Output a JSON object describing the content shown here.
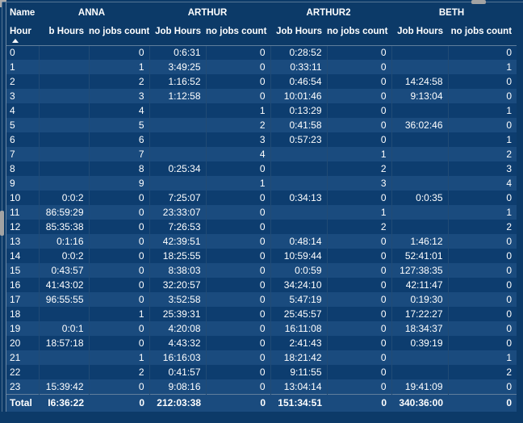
{
  "matrix": {
    "corner_label": "Name",
    "row_header_label": "Hour",
    "sort_direction": "ascending",
    "groups": [
      {
        "name": "ANNA",
        "columns": [
          "b Hours",
          "no jobs count"
        ]
      },
      {
        "name": "ARTHUR",
        "columns": [
          "Job Hours",
          "no jobs count"
        ]
      },
      {
        "name": "ARTHUR2",
        "columns": [
          "Job Hours",
          "no jobs count"
        ]
      },
      {
        "name": "BETH",
        "columns": [
          "Job Hours",
          "no jobs count"
        ]
      }
    ],
    "rows": [
      {
        "hour": "0",
        "values": [
          "",
          "0",
          "0:6:31",
          "0",
          "0:28:52",
          "0",
          "",
          "0"
        ]
      },
      {
        "hour": "1",
        "values": [
          "",
          "1",
          "3:49:25",
          "0",
          "0:33:11",
          "0",
          "",
          "1"
        ]
      },
      {
        "hour": "2",
        "values": [
          "",
          "2",
          "1:16:52",
          "0",
          "0:46:54",
          "0",
          "14:24:58",
          "0"
        ]
      },
      {
        "hour": "3",
        "values": [
          "",
          "3",
          "1:12:58",
          "0",
          "10:01:46",
          "0",
          "9:13:04",
          "0"
        ]
      },
      {
        "hour": "4",
        "values": [
          "",
          "4",
          "",
          "1",
          "0:13:29",
          "0",
          "",
          "1"
        ]
      },
      {
        "hour": "5",
        "values": [
          "",
          "5",
          "",
          "2",
          "0:41:58",
          "0",
          "36:02:46",
          "0"
        ]
      },
      {
        "hour": "6",
        "values": [
          "",
          "6",
          "",
          "3",
          "0:57:23",
          "0",
          "",
          "1"
        ]
      },
      {
        "hour": "7",
        "values": [
          "",
          "7",
          "",
          "4",
          "",
          "1",
          "",
          "2"
        ]
      },
      {
        "hour": "8",
        "values": [
          "",
          "8",
          "0:25:34",
          "0",
          "",
          "2",
          "",
          "3"
        ]
      },
      {
        "hour": "9",
        "values": [
          "",
          "9",
          "",
          "1",
          "",
          "3",
          "",
          "4"
        ]
      },
      {
        "hour": "10",
        "values": [
          "0:0:2",
          "0",
          "7:25:07",
          "0",
          "0:34:13",
          "0",
          "0:0:35",
          "0"
        ]
      },
      {
        "hour": "11",
        "values": [
          "86:59:29",
          "0",
          "23:33:07",
          "0",
          "",
          "1",
          "",
          "1"
        ]
      },
      {
        "hour": "12",
        "values": [
          "85:35:38",
          "0",
          "7:26:53",
          "0",
          "",
          "2",
          "",
          "2"
        ]
      },
      {
        "hour": "13",
        "values": [
          "0:1:16",
          "0",
          "42:39:51",
          "0",
          "0:48:14",
          "0",
          "1:46:12",
          "0"
        ]
      },
      {
        "hour": "14",
        "values": [
          "0:0:2",
          "0",
          "18:25:55",
          "0",
          "10:59:44",
          "0",
          "52:41:01",
          "0"
        ]
      },
      {
        "hour": "15",
        "values": [
          "0:43:57",
          "0",
          "8:38:03",
          "0",
          "0:0:59",
          "0",
          "127:38:35",
          "0"
        ]
      },
      {
        "hour": "16",
        "values": [
          "41:43:02",
          "0",
          "32:20:57",
          "0",
          "34:24:10",
          "0",
          "42:11:47",
          "0"
        ]
      },
      {
        "hour": "17",
        "values": [
          "96:55:55",
          "0",
          "3:52:58",
          "0",
          "5:47:19",
          "0",
          "0:19:30",
          "0"
        ]
      },
      {
        "hour": "18",
        "values": [
          "",
          "1",
          "25:39:31",
          "0",
          "25:45:57",
          "0",
          "17:22:27",
          "0"
        ]
      },
      {
        "hour": "19",
        "values": [
          "0:0:1",
          "0",
          "4:20:08",
          "0",
          "16:11:08",
          "0",
          "18:34:37",
          "0"
        ]
      },
      {
        "hour": "20",
        "values": [
          "18:57:18",
          "0",
          "4:43:32",
          "0",
          "2:41:43",
          "0",
          "0:39:19",
          "0"
        ]
      },
      {
        "hour": "21",
        "values": [
          "",
          "1",
          "16:16:03",
          "0",
          "18:21:42",
          "0",
          "",
          "1"
        ]
      },
      {
        "hour": "22",
        "values": [
          "",
          "2",
          "0:41:57",
          "0",
          "9:11:55",
          "0",
          "",
          "2"
        ]
      },
      {
        "hour": "23",
        "values": [
          "15:39:42",
          "0",
          "9:08:16",
          "0",
          "13:04:14",
          "0",
          "19:41:09",
          "0"
        ]
      }
    ],
    "total": {
      "label": "Total",
      "values": [
        "I6:36:22",
        "0",
        "212:03:38",
        "0",
        "151:34:51",
        "0",
        "340:36:00",
        "0"
      ]
    }
  },
  "colors": {
    "background": "#0c3a68",
    "row_dark": "#0d3d6f",
    "row_light": "#1a4b7e",
    "text": "#ffffff",
    "scrollbar_thumb": "#a3a3a3"
  }
}
